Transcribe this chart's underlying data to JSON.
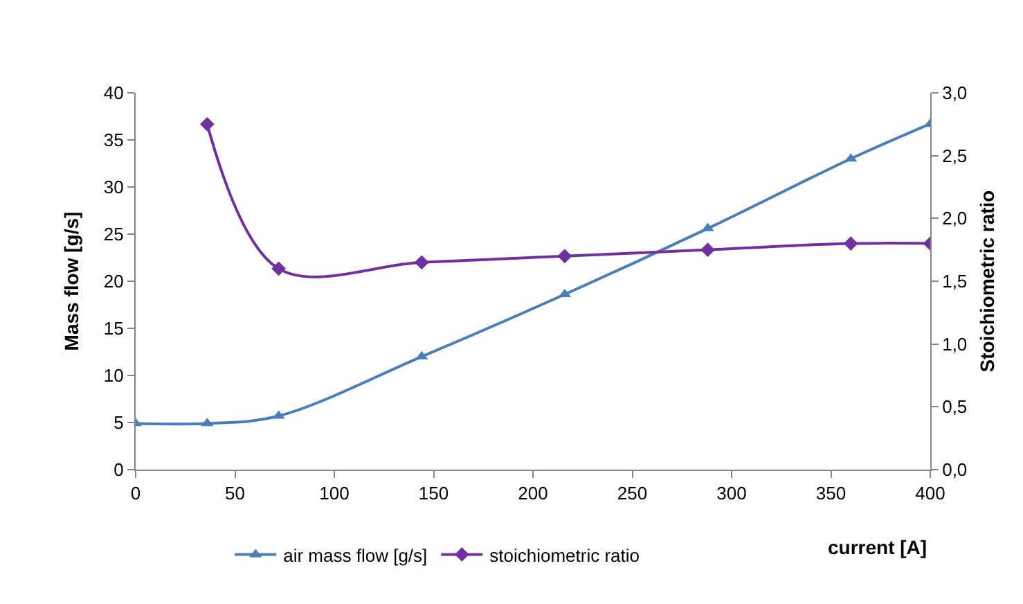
{
  "chart_data": {
    "type": "line",
    "xlabel": "current [A]",
    "ylabel": "Mass flow [g/s]",
    "y2label": "Stoichiometric ratio",
    "xlim": [
      0,
      400
    ],
    "xticks": [
      0,
      50,
      100,
      150,
      200,
      250,
      300,
      350,
      400
    ],
    "ylim": [
      0,
      40
    ],
    "yticks": [
      0,
      5,
      10,
      15,
      20,
      25,
      30,
      35,
      40
    ],
    "y2lim": [
      0,
      3
    ],
    "y2ticks": [
      {
        "value": 0,
        "label": "0,0"
      },
      {
        "value": 0.5,
        "label": "0,5"
      },
      {
        "value": 1,
        "label": "1,0"
      },
      {
        "value": 1.5,
        "label": "1,5"
      },
      {
        "value": 2,
        "label": "2,0"
      },
      {
        "value": 2.5,
        "label": "2,5"
      },
      {
        "value": 3,
        "label": "3,0"
      }
    ],
    "grid": false,
    "legend": "bottom",
    "line_style": "solid",
    "series": [
      {
        "name": "air mass flow [g/s]",
        "color": "#4a7ebb",
        "marker": "triangle",
        "x": [
          0,
          36,
          72,
          144,
          216,
          288,
          360,
          400
        ],
        "values": [
          4.9,
          4.9,
          5.7,
          12,
          18.6,
          25.6,
          33,
          36.7
        ]
      },
      {
        "name": "stoichiometric ratio",
        "color": "#7030a0",
        "marker": "diamond",
        "axis": "y2",
        "x": [
          36,
          72,
          144,
          216,
          288,
          360,
          400
        ],
        "values": [
          2.75,
          1.6,
          1.65,
          1.7,
          1.75,
          1.8,
          1.8
        ]
      }
    ]
  }
}
